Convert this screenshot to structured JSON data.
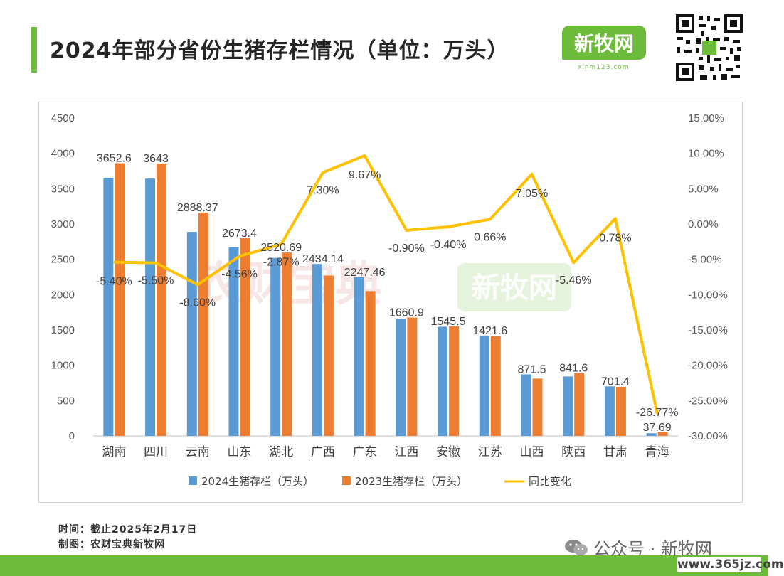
{
  "page": {
    "title": "2024年部分省份生猪存栏情况（单位：万头）",
    "logo_text": "新牧网",
    "logo_sub": "xinm123.com",
    "watermark_1": "农财宝典",
    "watermark_2": "新牧网",
    "footer_time": "时间：截止2025年2月17日",
    "footer_author": "制图：农财宝典新牧网",
    "wechat_label": "公众号 · 新牧网",
    "site_label": "www.365jz.com"
  },
  "colors": {
    "accent": "#6dbb3b",
    "series_2024": "#5b9bd5",
    "series_2023": "#ed7d31",
    "series_yoy": "#ffc000"
  },
  "chart_data": {
    "type": "bar",
    "title": "",
    "categories": [
      "湖南",
      "四川",
      "云南",
      "山东",
      "湖北",
      "广西",
      "广东",
      "江西",
      "安徽",
      "江苏",
      "山西",
      "陕西",
      "甘肃",
      "青海"
    ],
    "series": [
      {
        "name": "2024生猪存栏（万头）",
        "type": "bar",
        "axis": "left",
        "values": [
          3652.6,
          3643,
          2888.37,
          2673.4,
          2520.69,
          2434.14,
          2247.46,
          1660.9,
          1545.5,
          1421.6,
          871.5,
          841.6,
          701.4,
          37.69
        ],
        "labels": [
          "3652.6",
          "3643",
          "2888.37",
          "2673.4",
          "2520.69",
          "2434.14",
          "2247.46",
          "1660.9",
          "1545.5",
          "1421.6",
          "871.5",
          "841.6",
          "701.4",
          "37.69"
        ]
      },
      {
        "name": "2023生猪存栏（万头）",
        "type": "bar",
        "axis": "left",
        "values": [
          3860,
          3855,
          3160,
          2800,
          2596,
          2270,
          2050,
          1676,
          1552,
          1412,
          812,
          890,
          696,
          51
        ]
      },
      {
        "name": "同比变化",
        "type": "line",
        "axis": "right",
        "values": [
          -5.4,
          -5.5,
          -8.6,
          -4.56,
          -2.87,
          7.3,
          9.67,
          -0.9,
          -0.4,
          0.66,
          7.05,
          -5.46,
          0.78,
          -26.77
        ],
        "labels": [
          "-5.40%",
          "-5.50%",
          "-8.60%",
          "-4.56%",
          "-2.87%",
          "7.30%",
          "9.67%",
          "-0.90%",
          "-0.40%",
          "0.66%",
          "7.05%",
          "-5.46%",
          "0.78%",
          "-26.77%"
        ]
      }
    ],
    "y_left": {
      "min": 0,
      "max": 4500,
      "ticks": [
        "0",
        "500",
        "1000",
        "1500",
        "2000",
        "2500",
        "3000",
        "3500",
        "4000",
        "4500"
      ]
    },
    "y_right": {
      "min": -30,
      "max": 15,
      "ticks": [
        "-30.00%",
        "-25.00%",
        "-20.00%",
        "-15.00%",
        "-10.00%",
        "-5.00%",
        "0.00%",
        "5.00%",
        "10.00%",
        "15.00%"
      ]
    },
    "legend_position": "bottom",
    "grid": false
  }
}
